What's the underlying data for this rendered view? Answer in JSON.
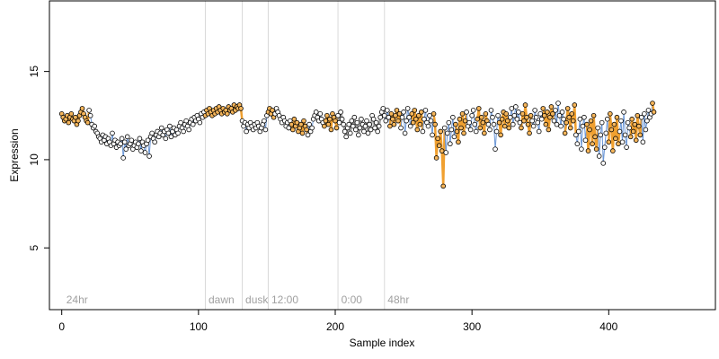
{
  "chart_data": {
    "type": "scatter",
    "title": "",
    "xlabel": "Sample index",
    "ylabel": "Expression",
    "xlim": [
      -9,
      478
    ],
    "ylim": [
      1.5,
      19.0
    ],
    "x_ticks": [
      0,
      100,
      200,
      300,
      400
    ],
    "y_ticks": [
      5,
      10,
      15
    ],
    "grid": false,
    "legend": "none",
    "colors": {
      "point_fill_dark": "#ffffff",
      "point_fill_light": "#f5b55a",
      "point_stroke": "#000000",
      "line_dark_phase": "#6a96d6",
      "line_light_phase": "#f0a030",
      "line_transition": "#a0a0a0",
      "separator": "#d9d9d9",
      "region_text": "#a0a0a0"
    },
    "regions": [
      {
        "label": "24hr",
        "x": 2
      },
      {
        "label": "dawn",
        "x": 106
      },
      {
        "label": "dusk",
        "x": 133
      },
      {
        "label": "12:00",
        "x": 152
      },
      {
        "label": "0:00",
        "x": 203
      },
      {
        "label": "48hr",
        "x": 237
      }
    ],
    "separators": [
      105,
      132,
      151,
      202,
      236
    ],
    "series": [
      {
        "y": [
          12.6,
          12.4,
          12.2,
          12.3,
          12.5,
          12.1,
          12.4,
          12.6,
          12.3,
          12.2,
          12.4,
          12.0,
          12.2,
          12.5,
          12.7,
          12.9,
          12.6,
          12.4,
          12.2,
          12.1,
          12.8,
          12.5,
          12.0,
          11.8,
          11.9,
          11.6,
          11.5,
          11.3,
          11.2,
          11.0,
          11.4,
          11.1,
          11.3,
          10.9,
          11.2,
          11.0,
          10.8,
          11.5,
          10.9,
          11.1,
          10.7,
          11.0,
          10.8,
          10.9,
          11.2,
          10.1,
          11.0,
          10.6,
          11.3,
          10.8,
          10.9,
          11.1,
          10.6,
          10.8,
          11.0,
          10.7,
          10.9,
          11.2,
          10.5,
          11.0,
          10.8,
          10.4,
          10.9,
          11.1,
          10.2,
          11.3,
          11.5,
          11.2,
          11.0,
          11.4,
          11.6,
          11.3,
          11.5,
          11.8,
          11.4,
          11.6,
          11.2,
          11.7,
          11.5,
          11.9,
          11.3,
          11.6,
          11.8,
          11.4,
          11.7,
          11.5,
          11.9,
          12.1,
          11.8,
          11.6,
          12.0,
          12.2,
          11.9,
          11.7,
          12.1,
          12.3,
          12.0,
          12.4,
          12.2,
          12.5,
          12.3,
          12.1,
          12.6,
          12.4,
          12.7,
          12.5,
          12.8,
          12.6,
          12.9,
          12.7,
          12.5,
          12.8,
          12.6,
          12.9,
          12.7,
          13.0,
          12.8,
          12.6,
          12.9,
          12.7,
          12.8,
          12.6,
          13.0,
          12.8,
          12.9,
          12.7,
          13.1,
          12.8,
          13.0,
          12.9,
          13.1,
          12.9,
          12.2,
          11.9,
          12.1,
          11.6,
          12.0,
          11.8,
          12.1,
          11.9,
          11.7,
          12.0,
          11.8,
          12.1,
          11.9,
          11.6,
          11.8,
          12.0,
          12.2,
          11.7,
          12.5,
          12.7,
          12.9,
          12.6,
          12.8,
          12.4,
          12.6,
          12.9,
          12.7,
          12.5,
          12.3,
          12.1,
          12.4,
          12.2,
          11.9,
          12.1,
          11.8,
          12.2,
          12.0,
          11.7,
          12.3,
          11.9,
          12.1,
          11.6,
          11.8,
          12.0,
          11.5,
          12.2,
          11.9,
          11.7,
          11.4,
          12.0,
          11.6,
          11.8,
          12.3,
          12.5,
          12.7,
          12.4,
          12.2,
          12.6,
          12.3,
          12.1,
          11.9,
          12.2,
          12.5,
          12.0,
          12.3,
          11.7,
          12.6,
          12.4,
          12.2,
          11.8,
          12.5,
          12.1,
          12.7,
          12.3,
          12.0,
          11.6,
          11.3,
          11.8,
          12.0,
          11.5,
          12.2,
          11.9,
          12.4,
          11.7,
          12.1,
          11.4,
          11.8,
          12.3,
          12.0,
          11.6,
          11.9,
          12.2,
          11.5,
          12.0,
          11.7,
          12.5,
          12.3,
          11.8,
          12.1,
          11.6,
          11.9,
          12.4,
          12.7,
          12.9,
          12.5,
          12.2,
          12.8,
          12.4,
          11.9,
          12.6,
          12.3,
          12.0,
          12.5,
          12.8,
          12.2,
          12.6,
          11.8,
          12.4,
          12.7,
          11.5,
          12.2,
          12.9,
          12.4,
          11.9,
          12.6,
          12.1,
          12.8,
          12.3,
          11.7,
          12.5,
          12.0,
          12.7,
          11.6,
          12.3,
          12.8,
          12.1,
          11.9,
          12.5,
          12.2,
          11.4,
          12.6,
          12.0,
          10.1,
          11.2,
          10.8,
          11.6,
          10.5,
          8.5,
          11.8,
          10.4,
          11.5,
          12.1,
          10.9,
          11.7,
          12.4,
          11.3,
          12.0,
          11.6,
          11.0,
          12.3,
          11.8,
          12.6,
          11.5,
          12.2,
          12.7,
          11.9,
          12.1,
          11.7,
          12.5,
          12.8,
          12.0,
          11.6,
          12.3,
          12.9,
          11.8,
          12.4,
          12.1,
          11.5,
          12.6,
          12.2,
          12.0,
          11.7,
          12.8,
          12.4,
          12.0,
          10.6,
          11.6,
          12.5,
          12.1,
          11.4,
          12.3,
          12.7,
          11.9,
          12.6,
          12.2,
          11.8,
          12.4,
          12.9,
          12.0,
          12.5,
          13.0,
          12.3,
          12.7,
          12.1,
          11.8,
          12.6,
          12.2,
          13.1,
          12.4,
          12.0,
          11.5,
          12.5,
          12.2,
          11.9,
          12.8,
          12.4,
          12.1,
          11.6,
          12.6,
          12.3,
          12.9,
          12.5,
          12.0,
          12.7,
          11.7,
          12.4,
          13.0,
          12.6,
          12.2,
          12.8,
          12.0,
          13.2,
          12.5,
          11.9,
          12.7,
          12.3,
          11.5,
          12.1,
          12.9,
          12.4,
          11.8,
          12.6,
          12.2,
          13.1,
          11.4,
          10.9,
          11.6,
          12.3,
          10.6,
          11.9,
          12.4,
          11.1,
          12.0,
          10.5,
          11.7,
          12.2,
          10.9,
          12.5,
          11.3,
          10.6,
          11.8,
          10.2,
          11.4,
          12.1,
          9.8,
          10.7,
          11.5,
          12.3,
          11.0,
          12.6,
          11.7,
          10.5,
          12.0,
          11.2,
          12.4,
          10.9,
          11.6,
          12.2,
          11.0,
          12.7,
          11.4,
          10.7,
          12.1,
          11.8,
          11.3,
          12.3,
          11.6,
          12.0,
          11.1,
          12.5,
          11.9,
          11.4,
          12.4,
          11.0,
          12.6,
          11.7,
          12.2,
          12.8,
          12.4,
          12.6,
          13.2,
          12.7
        ]
      }
    ]
  }
}
